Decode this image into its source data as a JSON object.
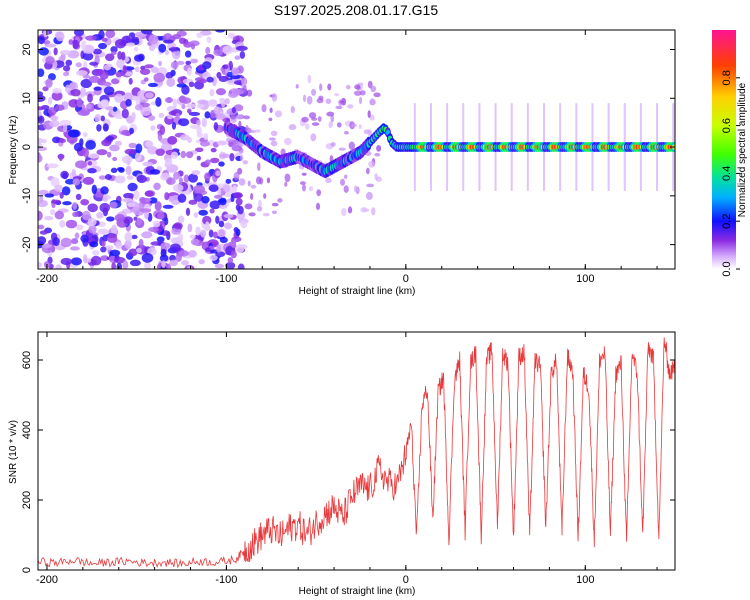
{
  "title": "S197.2025.208.01.17.G15",
  "colors": {
    "snr_line": "#e8383a",
    "colormap": [
      "#ffffff",
      "#d8b0ff",
      "#8a2be2",
      "#1010ff",
      "#00b0ff",
      "#00e0a0",
      "#40ff00",
      "#c8ff00",
      "#ffd000",
      "#ff4000",
      "#ff1493"
    ]
  },
  "chart_data": [
    {
      "type": "heatmap",
      "xlabel": "Height of straight line (km)",
      "ylabel": "Frequency (Hz)",
      "xlim": [
        -205,
        150
      ],
      "ylim": [
        -25,
        24
      ],
      "xticks": [
        -200,
        -100,
        0,
        100
      ],
      "yticks": [
        20,
        10,
        0,
        -10,
        -20
      ],
      "colorbar": {
        "label": "Normalized spectral amplitude",
        "ticks": [
          "0.0",
          "0.2",
          "0.4",
          "0.6",
          "0.8"
        ],
        "range": [
          0,
          1
        ]
      },
      "ridge": {
        "x": [
          -100,
          -90,
          -80,
          -70,
          -60,
          -50,
          -45,
          -40,
          -35,
          -30,
          -25,
          -20,
          -15,
          -12,
          -10,
          -8,
          -5,
          0,
          10,
          20,
          40,
          60,
          80,
          100,
          120,
          150
        ],
        "freq": [
          4,
          2,
          -1,
          -3,
          -2,
          -4,
          -5,
          -4,
          -3,
          -2,
          -1,
          1,
          3,
          4,
          3,
          1,
          0,
          0,
          0,
          0,
          0,
          0,
          0,
          0,
          0,
          0
        ]
      }
    },
    {
      "type": "line",
      "xlabel": "Height of straight line (km)",
      "ylabel": "SNR (10 * v/v)",
      "xlim": [
        -205,
        150
      ],
      "ylim": [
        0,
        680
      ],
      "xticks": [
        -200,
        -100,
        0,
        100
      ],
      "yticks": [
        0,
        200,
        400,
        600
      ],
      "series": [
        {
          "x": [
            -205,
            -195,
            -185,
            -175,
            -165,
            -155,
            -145,
            -135,
            -125,
            -115,
            -105,
            -95,
            -90,
            -85,
            -80,
            -75,
            -70,
            -65,
            -60,
            -55,
            -50,
            -45,
            -40,
            -35,
            -30,
            -25,
            -20,
            -15,
            -10,
            -5,
            0,
            3,
            6,
            9,
            12,
            15,
            18,
            21,
            24,
            27,
            30,
            33,
            36,
            39,
            42,
            45,
            48,
            51,
            54,
            57,
            60,
            63,
            66,
            69,
            72,
            75,
            78,
            81,
            84,
            87,
            90,
            93,
            96,
            99,
            102,
            105,
            108,
            111,
            114,
            117,
            120,
            123,
            126,
            129,
            132,
            135,
            138,
            141,
            144,
            147,
            150
          ],
          "y": [
            25,
            20,
            28,
            18,
            22,
            25,
            20,
            22,
            18,
            25,
            22,
            30,
            55,
            75,
            100,
            115,
            95,
            120,
            130,
            100,
            135,
            160,
            180,
            150,
            210,
            240,
            230,
            290,
            250,
            240,
            330,
            420,
            90,
            470,
            520,
            140,
            510,
            550,
            85,
            540,
            600,
            110,
            590,
            620,
            100,
            600,
            630,
            120,
            620,
            590,
            90,
            610,
            620,
            95,
            600,
            580,
            120,
            560,
            600,
            100,
            610,
            570,
            90,
            560,
            520,
            80,
            600,
            620,
            100,
            560,
            590,
            70,
            620,
            560,
            95,
            640,
            600,
            85,
            660,
            560,
            580
          ]
        }
      ]
    }
  ]
}
